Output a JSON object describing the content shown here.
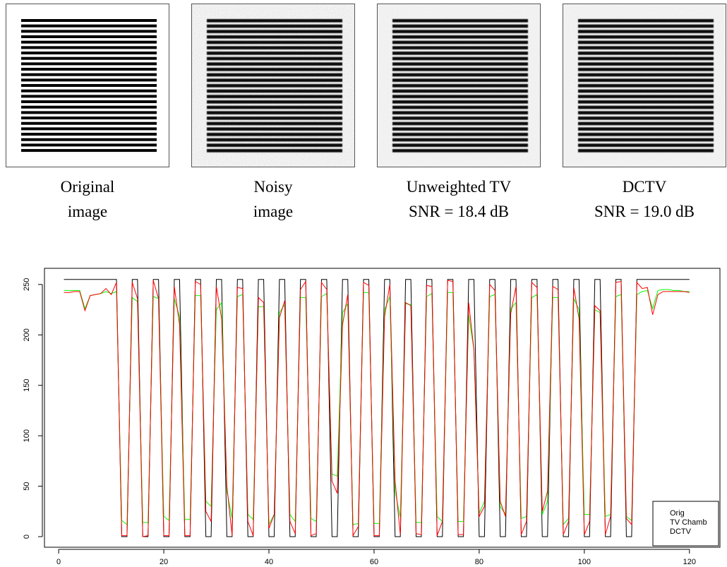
{
  "panels": [
    {
      "line1": "Original",
      "line2": "image"
    },
    {
      "line1": "Noisy",
      "line2": "image"
    },
    {
      "line1": "Unweighted TV",
      "line2": "SNR = 18.4 dB"
    },
    {
      "line1": "DCTV",
      "line2": "SNR = 19.0 dB"
    }
  ],
  "chart_data": {
    "type": "line",
    "x": [
      1,
      2,
      3,
      4,
      5,
      6,
      7,
      8,
      9,
      10,
      11,
      12,
      13,
      14,
      15,
      16,
      17,
      18,
      19,
      20,
      21,
      22,
      23,
      24,
      25,
      26,
      27,
      28,
      29,
      30,
      31,
      32,
      33,
      34,
      35,
      36,
      37,
      38,
      39,
      40,
      41,
      42,
      43,
      44,
      45,
      46,
      47,
      48,
      49,
      50,
      51,
      52,
      53,
      54,
      55,
      56,
      57,
      58,
      59,
      60,
      61,
      62,
      63,
      64,
      65,
      66,
      67,
      68,
      69,
      70,
      71,
      72,
      73,
      74,
      75,
      76,
      77,
      78,
      79,
      80,
      81,
      82,
      83,
      84,
      85,
      86,
      87,
      88,
      89,
      90,
      91,
      92,
      93,
      94,
      95,
      96,
      97,
      98,
      99,
      100,
      101,
      102,
      103,
      104,
      105,
      106,
      107,
      108,
      109,
      110,
      111,
      112,
      113,
      114,
      115,
      116,
      117,
      118,
      119,
      120
    ],
    "series": [
      {
        "name": "Orig",
        "color": "#000000",
        "values": [
          255,
          255,
          255,
          255,
          255,
          255,
          255,
          255,
          255,
          255,
          255,
          0,
          0,
          255,
          255,
          0,
          0,
          255,
          255,
          0,
          0,
          255,
          255,
          0,
          0,
          255,
          255,
          0,
          0,
          255,
          255,
          0,
          0,
          255,
          255,
          0,
          0,
          255,
          255,
          0,
          0,
          255,
          255,
          0,
          0,
          255,
          255,
          0,
          0,
          255,
          255,
          0,
          0,
          255,
          255,
          0,
          0,
          255,
          255,
          0,
          0,
          255,
          255,
          0,
          0,
          255,
          255,
          0,
          0,
          255,
          255,
          0,
          0,
          255,
          255,
          0,
          0,
          255,
          255,
          0,
          0,
          255,
          255,
          0,
          0,
          255,
          255,
          0,
          0,
          255,
          255,
          0,
          0,
          255,
          255,
          0,
          0,
          255,
          255,
          0,
          0,
          255,
          255,
          0,
          0,
          255,
          255,
          0,
          0,
          255,
          255,
          255,
          255,
          255,
          255,
          255,
          255,
          255,
          255,
          255
        ]
      },
      {
        "name": "TV Chamb",
        "color": "#00ff00",
        "values": [
          244,
          244,
          244,
          244,
          226,
          239,
          240,
          241,
          243,
          241,
          243,
          16,
          12,
          237,
          233,
          14,
          14,
          238,
          236,
          20,
          16,
          236,
          218,
          17,
          17,
          239,
          239,
          35,
          30,
          225,
          232,
          45,
          18,
          238,
          240,
          22,
          17,
          228,
          228,
          12,
          22,
          222,
          230,
          22,
          15,
          237,
          237,
          18,
          15,
          238,
          241,
          62,
          60,
          222,
          231,
          12,
          13,
          242,
          242,
          13,
          13,
          225,
          238,
          45,
          19,
          231,
          230,
          14,
          14,
          238,
          241,
          20,
          15,
          242,
          242,
          15,
          15,
          220,
          185,
          23,
          35,
          238,
          240,
          30,
          22,
          226,
          232,
          18,
          20,
          237,
          240,
          22,
          35,
          237,
          237,
          12,
          18,
          236,
          225,
          22,
          22,
          225,
          222,
          20,
          22,
          238,
          240,
          20,
          16,
          240,
          243,
          244,
          226,
          244,
          245,
          245,
          244,
          244,
          243,
          243
        ]
      },
      {
        "name": "DCTV",
        "color": "#ff0000",
        "values": [
          242,
          242,
          243,
          243,
          224,
          239,
          240,
          241,
          246,
          240,
          252,
          1,
          1,
          252,
          236,
          0,
          1,
          254,
          236,
          1,
          1,
          248,
          210,
          1,
          1,
          253,
          250,
          25,
          15,
          248,
          216,
          50,
          1,
          247,
          246,
          15,
          1,
          237,
          232,
          8,
          22,
          217,
          234,
          15,
          3,
          245,
          253,
          1,
          3,
          252,
          245,
          55,
          43,
          210,
          240,
          1,
          10,
          252,
          249,
          1,
          1,
          218,
          250,
          55,
          2,
          232,
          229,
          3,
          2,
          249,
          248,
          1,
          15,
          254,
          253,
          2,
          2,
          232,
          185,
          20,
          30,
          250,
          244,
          35,
          20,
          221,
          248,
          2,
          15,
          252,
          247,
          25,
          45,
          248,
          245,
          2,
          15,
          247,
          216,
          2,
          15,
          229,
          224,
          2,
          20,
          252,
          253,
          18,
          12,
          252,
          246,
          247,
          220,
          240,
          243,
          243,
          243,
          243,
          243,
          242
        ]
      }
    ],
    "xlim": [
      -2.7,
      125.8
    ],
    "xticks": [
      0,
      20,
      40,
      60,
      80,
      100,
      120
    ],
    "ylim": [
      -10.5,
      266
    ],
    "yticks": [
      0,
      50,
      100,
      150,
      200,
      250
    ],
    "legend": "bottom-right"
  }
}
